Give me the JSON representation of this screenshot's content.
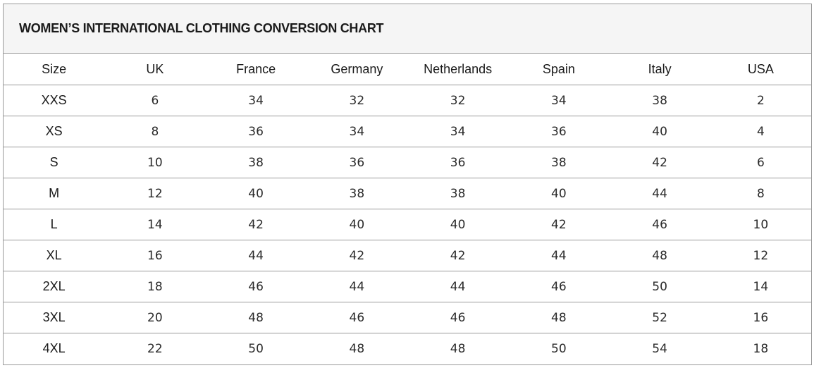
{
  "title": "WOMEN’S INTERNATIONAL CLOTHING CONVERSION CHART",
  "columns": [
    "Size",
    "UK",
    "France",
    "Germany",
    "Netherlands",
    "Spain",
    "Italy",
    "USA"
  ],
  "rows": [
    [
      "XXS",
      "6",
      "34",
      "32",
      "32",
      "34",
      "38",
      "2"
    ],
    [
      "XS",
      "8",
      "36",
      "34",
      "34",
      "36",
      "40",
      "4"
    ],
    [
      "S",
      "10",
      "38",
      "36",
      "36",
      "38",
      "42",
      "6"
    ],
    [
      "M",
      "12",
      "40",
      "38",
      "38",
      "40",
      "44",
      "8"
    ],
    [
      "L",
      "14",
      "42",
      "40",
      "40",
      "42",
      "46",
      "10"
    ],
    [
      "XL",
      "16",
      "44",
      "42",
      "42",
      "44",
      "48",
      "12"
    ],
    [
      "2XL",
      "18",
      "46",
      "44",
      "44",
      "46",
      "50",
      "14"
    ],
    [
      "3XL",
      "20",
      "48",
      "46",
      "46",
      "48",
      "52",
      "16"
    ],
    [
      "4XL",
      "22",
      "50",
      "48",
      "48",
      "50",
      "54",
      "18"
    ]
  ],
  "colors": {
    "border": "#9a9a9a",
    "header_background": "#f5f5f5",
    "text": "#1a1a1a"
  }
}
